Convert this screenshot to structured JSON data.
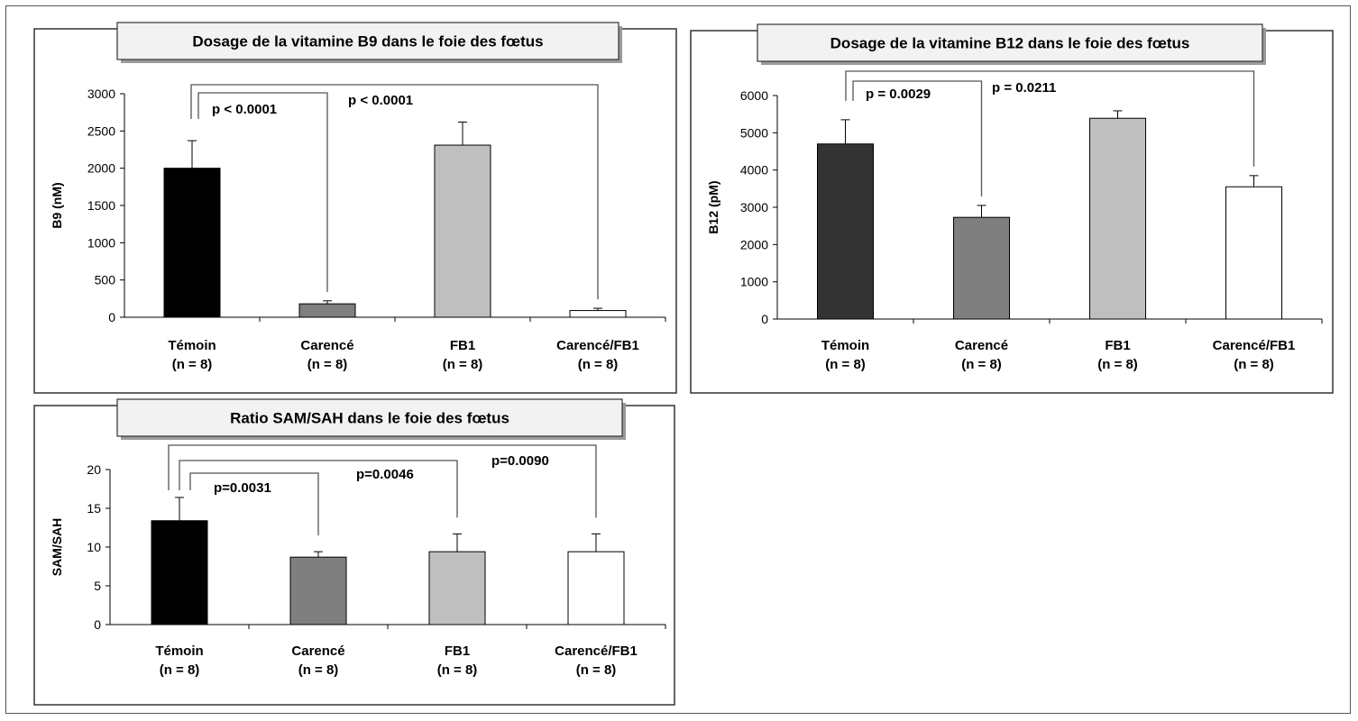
{
  "chart_data": [
    {
      "id": "b9",
      "type": "bar",
      "title": "Dosage de la vitamine B9 dans le foie des fœtus",
      "ylabel": "B9 (nM)",
      "ylim": [
        0,
        3000
      ],
      "yticks": [
        0,
        500,
        1000,
        1500,
        2000,
        2500,
        3000
      ],
      "categories": [
        "Témoin",
        "Carencé",
        "FB1",
        "Carencé/FB1"
      ],
      "n_labels": [
        "(n = 8)",
        "(n = 8)",
        "(n = 8)",
        "(n = 8)"
      ],
      "values": [
        2000,
        180,
        2310,
        90
      ],
      "errors": [
        370,
        40,
        310,
        30
      ],
      "colors": [
        "#000000",
        "#7f7f7f",
        "#bfbfbf",
        "#ffffff"
      ],
      "comparisons": [
        {
          "from": 0,
          "to": 1,
          "label": "p < 0.0001"
        },
        {
          "from": 0,
          "to": 3,
          "label": "p < 0.0001"
        }
      ]
    },
    {
      "id": "b12",
      "type": "bar",
      "title": "Dosage de la vitamine B12 dans le foie des fœtus",
      "ylabel": "B12 (pM)",
      "ylim": [
        0,
        6000
      ],
      "yticks": [
        0,
        1000,
        2000,
        3000,
        4000,
        5000,
        6000
      ],
      "categories": [
        "Témoin",
        "Carencé",
        "FB1",
        "Carencé/FB1"
      ],
      "n_labels": [
        "(n = 8)",
        "(n = 8)",
        "(n = 8)",
        "(n = 8)"
      ],
      "values": [
        4700,
        2730,
        5390,
        3550
      ],
      "errors": [
        650,
        320,
        200,
        300
      ],
      "colors": [
        "#333333",
        "#7f7f7f",
        "#bfbfbf",
        "#ffffff"
      ],
      "comparisons": [
        {
          "from": 0,
          "to": 1,
          "label": "p = 0.0029"
        },
        {
          "from": 0,
          "to": 3,
          "label": "p = 0.0211"
        }
      ]
    },
    {
      "id": "sam",
      "type": "bar",
      "title": "Ratio SAM/SAH dans le foie des fœtus",
      "ylabel": "SAM/SAH",
      "ylim": [
        0,
        20
      ],
      "yticks": [
        0,
        5,
        10,
        15,
        20
      ],
      "categories": [
        "Témoin",
        "Carencé",
        "FB1",
        "Carencé/FB1"
      ],
      "n_labels": [
        "(n = 8)",
        "(n = 8)",
        "(n = 8)",
        "(n = 8)"
      ],
      "values": [
        13.4,
        8.7,
        9.4,
        9.4
      ],
      "errors": [
        3.0,
        0.7,
        2.3,
        2.3
      ],
      "colors": [
        "#000000",
        "#7f7f7f",
        "#bfbfbf",
        "#ffffff"
      ],
      "comparisons": [
        {
          "from": 0,
          "to": 1,
          "label": "p=0.0031"
        },
        {
          "from": 0,
          "to": 2,
          "label": "p=0.0046"
        },
        {
          "from": 0,
          "to": 3,
          "label": "p=0.0090"
        }
      ]
    }
  ]
}
